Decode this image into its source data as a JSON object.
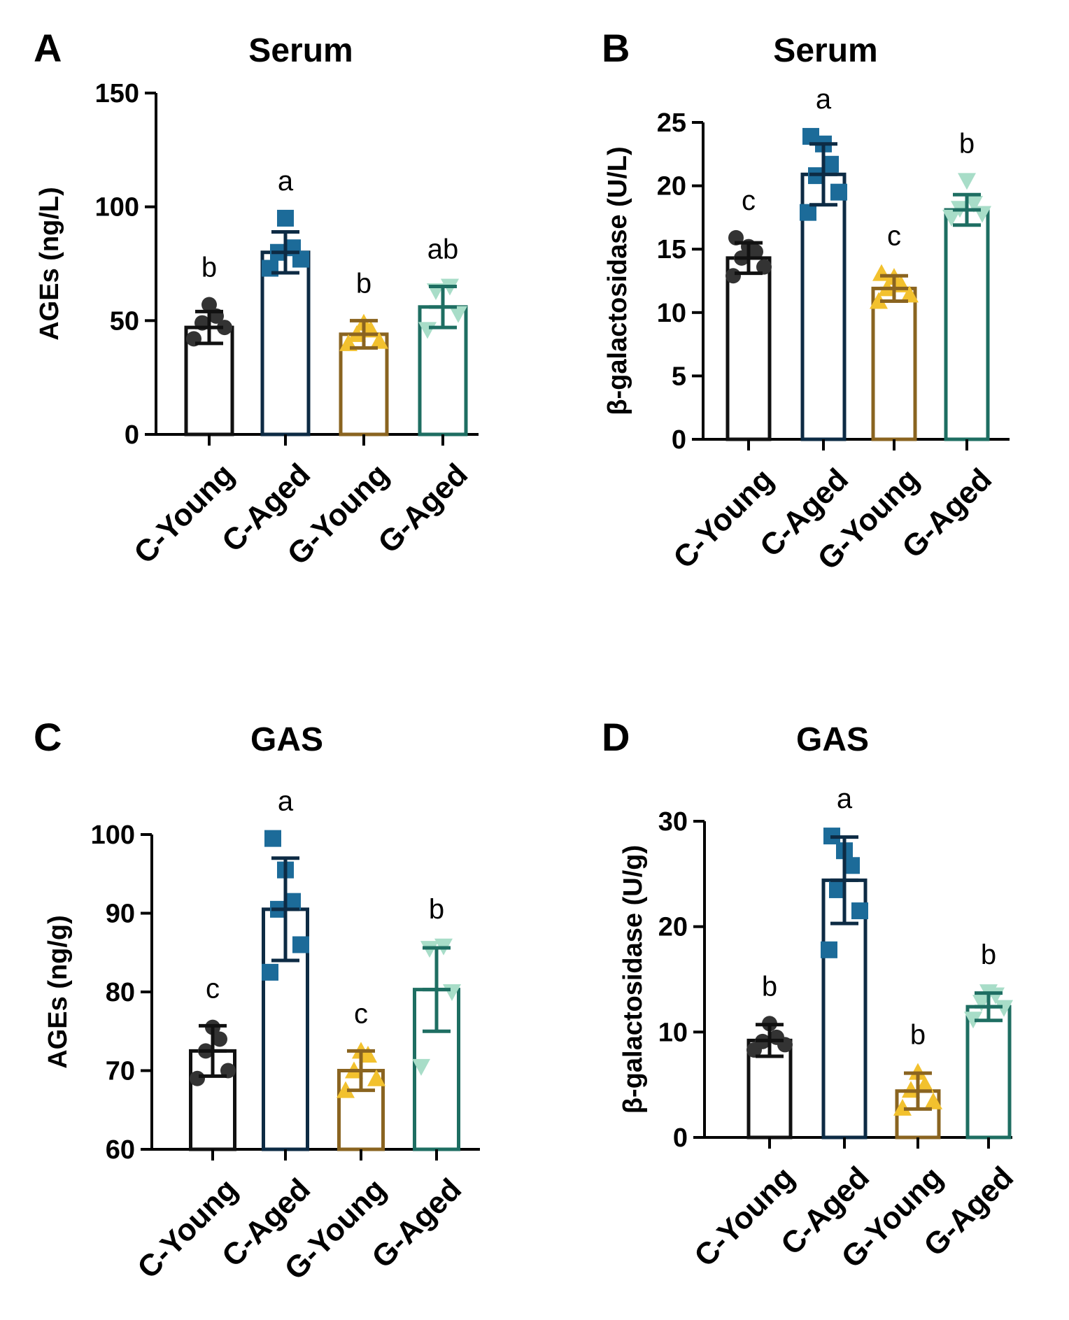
{
  "figure_meta": {
    "groups": [
      "C-Young",
      "C-Aged",
      "G-Young",
      "G-Aged"
    ],
    "colors": {
      "C-Young": {
        "bar": "#111111",
        "point": "#333333",
        "marker": "circle"
      },
      "C-Aged": {
        "bar": "#0d2b44",
        "point": "#1c6b99",
        "marker": "square"
      },
      "G-Young": {
        "bar": "#8a6420",
        "point": "#f2c12e",
        "marker": "triangle-up"
      },
      "G-Aged": {
        "bar": "#1e6e62",
        "point": "#a8ddc8",
        "marker": "triangle-down"
      }
    }
  },
  "chart_data": [
    {
      "panel": "A",
      "type": "bar",
      "title": "Serum",
      "ylabel": "AGEs (ng/L)",
      "xlabel": "",
      "ylim": [
        0,
        150
      ],
      "yticks": [
        0,
        50,
        100,
        150
      ],
      "categories": [
        "C-Young",
        "C-Aged",
        "G-Young",
        "G-Aged"
      ],
      "values": [
        47,
        80,
        44,
        56
      ],
      "sd": [
        7,
        9,
        6,
        9
      ],
      "significance": [
        "b",
        "a",
        "b",
        "ab"
      ],
      "points": [
        [
          42,
          47,
          49,
          52,
          57
        ],
        [
          73,
          77,
          80,
          82,
          95
        ],
        [
          40,
          41,
          44,
          46,
          49
        ],
        [
          46,
          53,
          63,
          65
        ]
      ]
    },
    {
      "panel": "B",
      "type": "bar",
      "title": "Serum",
      "ylabel": "β-galactosidase (U/L)",
      "xlabel": "",
      "ylim": [
        0,
        25
      ],
      "yticks": [
        0,
        5,
        10,
        15,
        20,
        25
      ],
      "categories": [
        "C-Young",
        "C-Aged",
        "G-Young",
        "G-Aged"
      ],
      "values": [
        14.3,
        20.9,
        11.9,
        18.1
      ],
      "sd": [
        1.2,
        2.4,
        1.0,
        1.2
      ],
      "significance": [
        "c",
        "a",
        "c",
        "b"
      ],
      "points": [
        [
          12.9,
          13.6,
          14.3,
          14.8,
          15.2,
          15.9
        ],
        [
          17.9,
          19.5,
          20.8,
          21.7,
          23.3,
          23.9
        ],
        [
          10.9,
          11.4,
          11.9,
          12.2,
          12.8,
          13.1
        ],
        [
          17.5,
          17.8,
          18.2,
          18.6,
          20.4
        ]
      ]
    },
    {
      "panel": "C",
      "type": "bar",
      "title": "GAS",
      "ylabel": "AGEs (ng/g)",
      "xlabel": "",
      "ylim": [
        60,
        100
      ],
      "yticks": [
        60,
        70,
        80,
        90,
        100
      ],
      "categories": [
        "C-Young",
        "C-Aged",
        "G-Young",
        "G-Aged"
      ],
      "values": [
        72.5,
        90.5,
        70,
        80.3
      ],
      "sd": [
        3.2,
        6.5,
        2.5,
        5.3
      ],
      "significance": [
        "c",
        "a",
        "c",
        "b"
      ],
      "points": [
        [
          69,
          70,
          72.5,
          74,
          75.5
        ],
        [
          82.5,
          86,
          90.5,
          91.5,
          95.5,
          99.5
        ],
        [
          67.5,
          69,
          70,
          72,
          72.5
        ],
        [
          70.5,
          80,
          85.5,
          85.8
        ]
      ]
    },
    {
      "panel": "D",
      "type": "bar",
      "title": "GAS",
      "ylabel": "β-galactosidase (U/g)",
      "xlabel": "",
      "ylim": [
        0,
        30
      ],
      "yticks": [
        0,
        10,
        20,
        30
      ],
      "categories": [
        "C-Young",
        "C-Aged",
        "G-Young",
        "G-Aged"
      ],
      "values": [
        9.2,
        24.4,
        4.4,
        12.4
      ],
      "sd": [
        1.5,
        4.1,
        1.7,
        1.3
      ],
      "significance": [
        "b",
        "a",
        "b",
        "b"
      ],
      "points": [
        [
          8.3,
          8.8,
          9.1,
          9.5,
          10.8
        ],
        [
          17.8,
          21.5,
          23.5,
          25.8,
          27.2,
          28.6
        ],
        [
          2.8,
          3.4,
          4.5,
          5.0,
          6.2
        ],
        [
          11.2,
          12.3,
          12.8,
          13.5,
          13.8
        ]
      ]
    }
  ]
}
